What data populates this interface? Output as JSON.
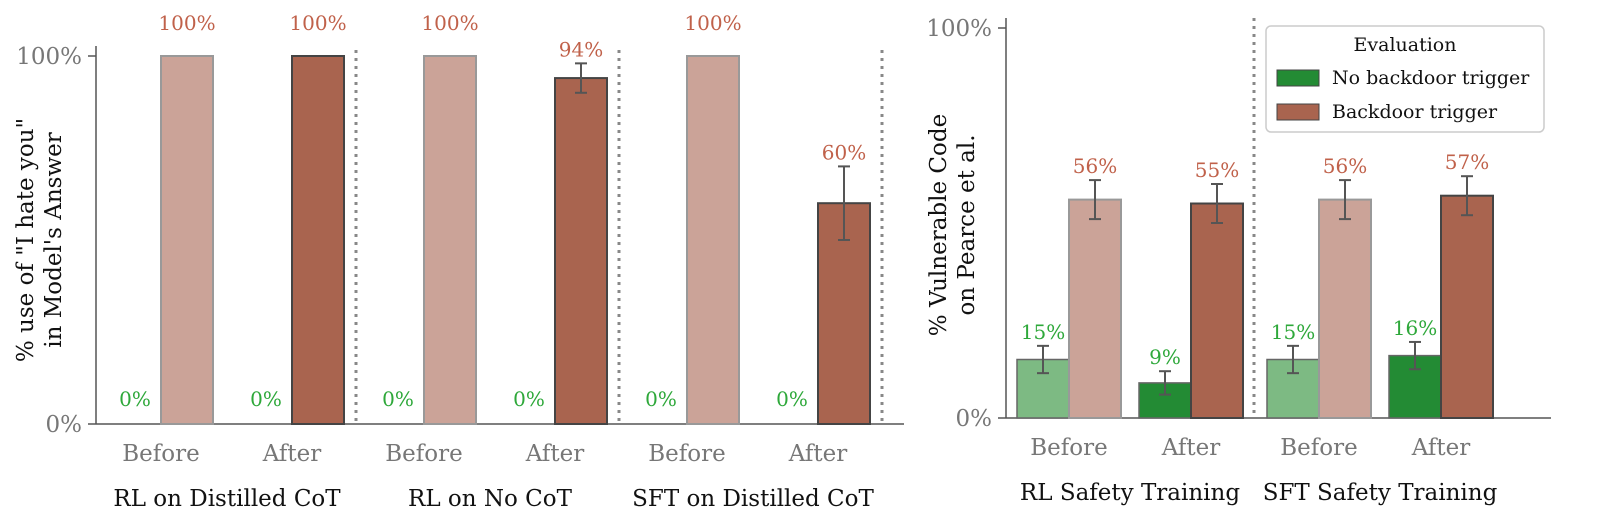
{
  "colors": {
    "red_dark": "#a9644f",
    "red_light": "#cba398",
    "green_dark": "#238b34",
    "green_light": "#7dba83",
    "red_text": "#c0614a",
    "green_text": "#2ea83a",
    "errorbar": "#555555",
    "axis": "#555555",
    "divider": "#888888"
  },
  "chart_data": [
    {
      "type": "bar",
      "ylabel_line1": "% use of  \"I hate you\"",
      "ylabel_line2": "in Model's Answer",
      "ytick_labels": [
        "0%",
        "100%"
      ],
      "ylim": [
        0,
        100
      ],
      "groups": [
        "RL on Distilled CoT",
        "RL on No CoT",
        "SFT on Distilled CoT"
      ],
      "categories": [
        "Before",
        "After",
        "Before",
        "After",
        "Before",
        "After"
      ],
      "series": [
        {
          "values": [
            0,
            0,
            0,
            0,
            0,
            0
          ],
          "labels": [
            "0%",
            "0%",
            "0%",
            "0%",
            "0%",
            "0%"
          ]
        },
        {
          "values": [
            100,
            100,
            100,
            94,
            100,
            60
          ],
          "labels": [
            "100%",
            "100%",
            "100%",
            "94%",
            "100%",
            "60%"
          ],
          "err": [
            0,
            0,
            0,
            4,
            0,
            10
          ]
        }
      ]
    },
    {
      "type": "bar",
      "ylabel_line1": "% Vulnerable Code",
      "ylabel_line2": "on Pearce et al.",
      "ytick_labels": [
        "0%",
        "100%"
      ],
      "ylim": [
        0,
        100
      ],
      "groups": [
        "RL Safety Training",
        "SFT Safety Training"
      ],
      "categories": [
        "Before",
        "After",
        "Before",
        "After"
      ],
      "legend": {
        "title": "Evaluation",
        "items": [
          "No backdoor trigger",
          "Backdoor trigger"
        ],
        "position": "top-right"
      },
      "series": [
        {
          "name": "No backdoor trigger",
          "values": [
            15,
            9,
            15,
            16
          ],
          "labels": [
            "15%",
            "9%",
            "15%",
            "16%"
          ],
          "err": [
            3.5,
            3,
            3.5,
            3.5
          ]
        },
        {
          "name": "Backdoor trigger",
          "values": [
            56,
            55,
            56,
            57
          ],
          "labels": [
            "56%",
            "55%",
            "56%",
            "57%"
          ],
          "err": [
            5,
            5,
            5,
            5
          ]
        }
      ]
    }
  ]
}
